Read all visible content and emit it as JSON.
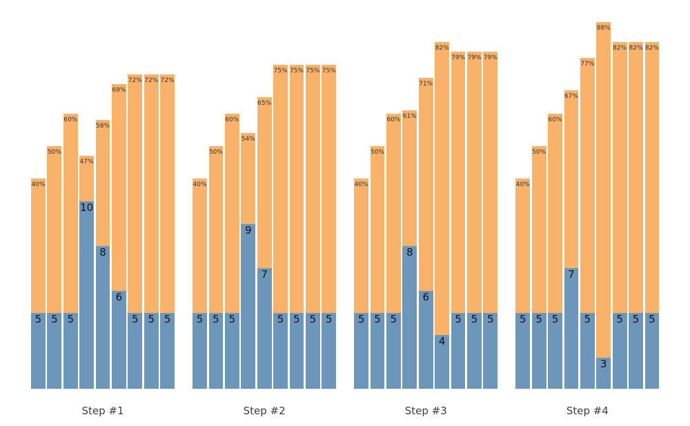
{
  "chart_data": {
    "type": "bar",
    "stacked": true,
    "orientation": "vertical",
    "title": "",
    "xlabel": "",
    "ylabel": "",
    "axes_visible": false,
    "grid": false,
    "legend": null,
    "background": "#ffffff",
    "colors": {
      "base_segment": "#6d96bb",
      "top_segment": "#f8b26a",
      "percent_label_text": "#333333",
      "value_label_text": "#111111",
      "group_label_text": "#3d3d3d"
    },
    "series": [
      {
        "name": "base-value",
        "role": "blue bottom segment, value printed at segment top"
      },
      {
        "name": "total-with-percent",
        "role": "orange full bar, percent printed at bar top"
      }
    ],
    "groups": [
      {
        "label": "Step #1",
        "bars": [
          {
            "value": 5,
            "percent": 40,
            "percent_label": "40%"
          },
          {
            "value": 5,
            "percent": 50,
            "percent_label": "50%"
          },
          {
            "value": 5,
            "percent": 60,
            "percent_label": "60%"
          },
          {
            "value": 10,
            "percent": 47,
            "percent_label": "47%"
          },
          {
            "value": 8,
            "percent": 58,
            "percent_label": "58%"
          },
          {
            "value": 6,
            "percent": 69,
            "percent_label": "69%"
          },
          {
            "value": 5,
            "percent": 72,
            "percent_label": "72%"
          },
          {
            "value": 5,
            "percent": 72,
            "percent_label": "72%"
          },
          {
            "value": 5,
            "percent": 72,
            "percent_label": "72%"
          }
        ]
      },
      {
        "label": "Step #2",
        "bars": [
          {
            "value": 5,
            "percent": 40,
            "percent_label": "40%"
          },
          {
            "value": 5,
            "percent": 50,
            "percent_label": "50%"
          },
          {
            "value": 5,
            "percent": 60,
            "percent_label": "60%"
          },
          {
            "value": 9,
            "percent": 54,
            "percent_label": "54%"
          },
          {
            "value": 7,
            "percent": 65,
            "percent_label": "65%"
          },
          {
            "value": 5,
            "percent": 75,
            "percent_label": "75%"
          },
          {
            "value": 5,
            "percent": 75,
            "percent_label": "75%"
          },
          {
            "value": 5,
            "percent": 75,
            "percent_label": "75%"
          },
          {
            "value": 5,
            "percent": 75,
            "percent_label": "75%"
          }
        ]
      },
      {
        "label": "Step #3",
        "bars": [
          {
            "value": 5,
            "percent": 40,
            "percent_label": "40%"
          },
          {
            "value": 5,
            "percent": 50,
            "percent_label": "50%"
          },
          {
            "value": 5,
            "percent": 60,
            "percent_label": "60%"
          },
          {
            "value": 8,
            "percent": 61,
            "percent_label": "61%"
          },
          {
            "value": 6,
            "percent": 71,
            "percent_label": "71%"
          },
          {
            "value": 4,
            "percent": 82,
            "percent_label": "82%"
          },
          {
            "value": 5,
            "percent": 79,
            "percent_label": "79%"
          },
          {
            "value": 5,
            "percent": 79,
            "percent_label": "79%"
          },
          {
            "value": 5,
            "percent": 79,
            "percent_label": "79%"
          }
        ]
      },
      {
        "label": "Step #4",
        "bars": [
          {
            "value": 5,
            "percent": 40,
            "percent_label": "40%"
          },
          {
            "value": 5,
            "percent": 50,
            "percent_label": "50%"
          },
          {
            "value": 5,
            "percent": 60,
            "percent_label": "60%"
          },
          {
            "value": 7,
            "percent": 67,
            "percent_label": "67%"
          },
          {
            "value": 5,
            "percent": 77,
            "percent_label": "77%"
          },
          {
            "value": 3,
            "percent": 88,
            "percent_label": "88%"
          },
          {
            "value": 5,
            "percent": 82,
            "percent_label": "82%"
          },
          {
            "value": 5,
            "percent": 82,
            "percent_label": "82%"
          },
          {
            "value": 5,
            "percent": 82,
            "percent_label": "82%"
          }
        ]
      }
    ]
  }
}
